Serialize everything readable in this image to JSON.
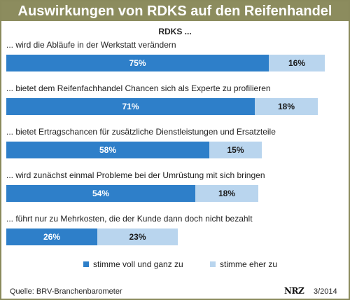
{
  "title": "Auswirkungen von RDKS auf den Reifenhandel",
  "source": "Quelle:  BRV-Branchenbarometer",
  "logo": "NRZ",
  "date": "3/2014",
  "chart_data": {
    "type": "bar",
    "orientation": "horizontal",
    "stacked": true,
    "title": "RDKS ...",
    "categories": [
      "... wird die Abläufe in der Werkstatt verändern",
      "... bietet dem Reifenfachhandel Chancen sich als Experte zu profilieren",
      "... bietet Ertragschancen für zusätzliche Dienstleistungen und Ersatzteile",
      "... wird zunächst einmal Probleme bei der Umrüstung mit sich bringen",
      "... führt nur zu Mehrkosten, die der Kunde dann doch nicht bezahlt"
    ],
    "series": [
      {
        "name": "stimme voll und ganz zu",
        "values": [
          75,
          71,
          58,
          54,
          26
        ],
        "labels": [
          "75%",
          "71%",
          "58%",
          "54%",
          "26%"
        ],
        "color": "#2e7fc9"
      },
      {
        "name": "stimme eher zu",
        "values": [
          16,
          18,
          15,
          18,
          23
        ],
        "labels": [
          "16%",
          "18%",
          "15%",
          "18%",
          "23%"
        ],
        "color": "#b9d5ee"
      }
    ],
    "xlim": [
      0,
      100
    ],
    "grid": false,
    "legend_position": "bottom"
  }
}
